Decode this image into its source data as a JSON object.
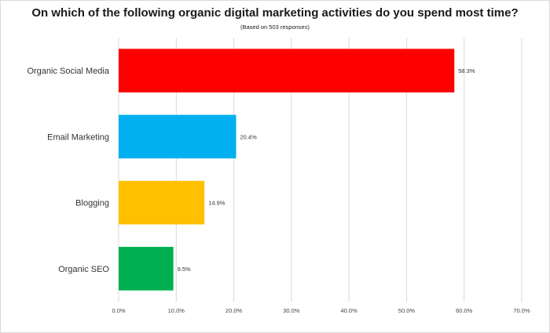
{
  "chart_data": {
    "type": "bar",
    "orientation": "horizontal",
    "title": "On which of the following organic digital marketing activities do you spend most time?",
    "subtitle": "(Based on 503 responses)",
    "categories": [
      "Organic Social Media",
      "Email Marketing",
      "Blogging",
      "Organic SEO"
    ],
    "values": [
      58.3,
      20.4,
      14.9,
      9.5
    ],
    "data_labels": [
      "58.3%",
      "20.4%",
      "14.9%",
      "9.5%"
    ],
    "colors": [
      "#ff0000",
      "#00b0f0",
      "#ffc000",
      "#00b050"
    ],
    "xlim": [
      0,
      70
    ],
    "xticks": [
      0,
      10,
      20,
      30,
      40,
      50,
      60,
      70
    ],
    "xtick_labels": [
      "0.0%",
      "10.0%",
      "20.0%",
      "30.0%",
      "40.0%",
      "50.0%",
      "60.0%",
      "70.0%"
    ],
    "grid": true,
    "legend": "none"
  }
}
